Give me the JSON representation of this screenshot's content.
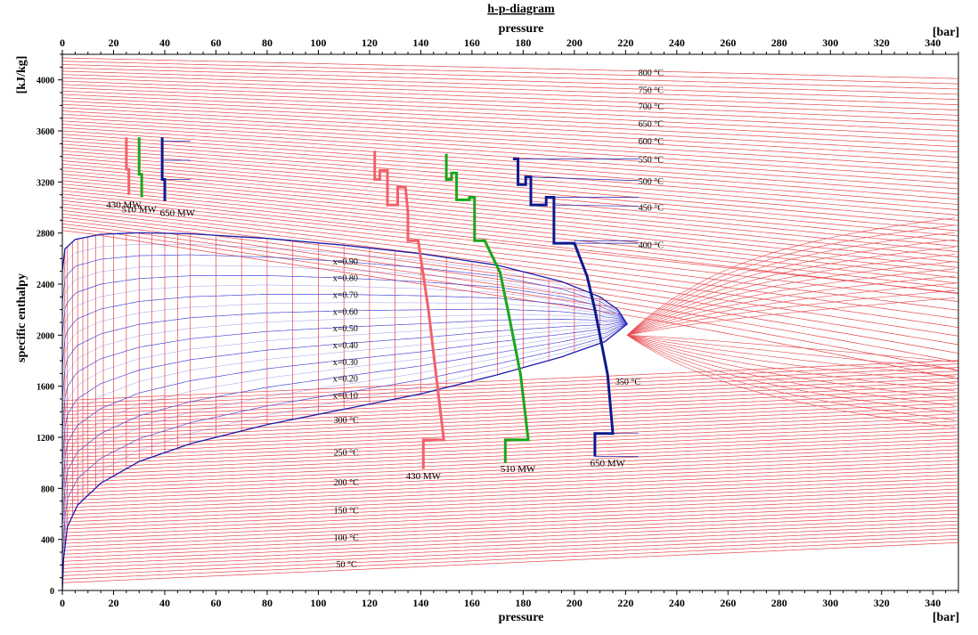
{
  "chart_data": {
    "type": "line",
    "title": "h-p-diagram",
    "xlabel": "pressure",
    "xunit": "[bar]",
    "ylabel": "specific enthalpy",
    "yunit": "[kJ/kg]",
    "xlim": [
      0,
      350
    ],
    "ylim": [
      0,
      4200
    ],
    "xticks": [
      "0",
      "20",
      "40",
      "60",
      "80",
      "100",
      "120",
      "140",
      "160",
      "180",
      "200",
      "220",
      "240",
      "260",
      "280",
      "300",
      "320",
      "340"
    ],
    "yticks": [
      "0",
      "400",
      "800",
      "1200",
      "1600",
      "2000",
      "2400",
      "2800",
      "3200",
      "3600",
      "4000"
    ],
    "critical_point": {
      "p": 220.6,
      "h": 2087
    },
    "saturation_dome": {
      "liquid": [
        [
          0.01,
          0
        ],
        [
          0.5,
          250
        ],
        [
          2,
          500
        ],
        [
          6,
          670
        ],
        [
          15,
          840
        ],
        [
          30,
          1010
        ],
        [
          50,
          1150
        ],
        [
          80,
          1300
        ],
        [
          110,
          1420
        ],
        [
          140,
          1540
        ],
        [
          170,
          1690
        ],
        [
          195,
          1830
        ],
        [
          212,
          1950
        ],
        [
          220.6,
          2087
        ]
      ],
      "vapor": [
        [
          0.01,
          2500
        ],
        [
          1,
          2675
        ],
        [
          5,
          2750
        ],
        [
          15,
          2790
        ],
        [
          30,
          2802
        ],
        [
          50,
          2794
        ],
        [
          80,
          2758
        ],
        [
          110,
          2705
        ],
        [
          140,
          2638
        ],
        [
          170,
          2548
        ],
        [
          195,
          2420
        ],
        [
          210,
          2300
        ],
        [
          217,
          2200
        ],
        [
          220.6,
          2087
        ]
      ]
    },
    "quality_lines": [
      "x=0.90",
      "x=0.80",
      "x=0.70",
      "x=0.60",
      "x=0.50",
      "x=0.40",
      "x=0.30",
      "x=0.20",
      "x=0.10"
    ],
    "quality_values": [
      0.9,
      0.8,
      0.7,
      0.6,
      0.5,
      0.4,
      0.3,
      0.2,
      0.1
    ],
    "isotherm_labels": [
      {
        "text": "800 °C",
        "p": 225,
        "h": 4060
      },
      {
        "text": "750 °C",
        "p": 225,
        "h": 3925
      },
      {
        "text": "700 °C",
        "p": 225,
        "h": 3795
      },
      {
        "text": "650 °C",
        "p": 225,
        "h": 3660
      },
      {
        "text": "600 °C",
        "p": 225,
        "h": 3525
      },
      {
        "text": "550 °C",
        "p": 225,
        "h": 3380
      },
      {
        "text": "500 °C",
        "p": 225,
        "h": 3210
      },
      {
        "text": "450 °C",
        "p": 225,
        "h": 3005
      },
      {
        "text": "400 °C",
        "p": 225,
        "h": 2710
      },
      {
        "text": "350 °C",
        "p": 216,
        "h": 1640
      },
      {
        "text": "300 °C",
        "p": 106,
        "h": 1340
      },
      {
        "text": "250 °C",
        "p": 106,
        "h": 1085
      },
      {
        "text": "200 °C",
        "p": 106,
        "h": 852
      },
      {
        "text": "150 °C",
        "p": 106,
        "h": 632
      },
      {
        "text": "100 °C",
        "p": 106,
        "h": 420
      },
      {
        "text": "50 °C",
        "p": 107,
        "h": 210
      }
    ],
    "series": [
      {
        "name": "430 MW",
        "color": "#f0626a",
        "path": [
          [
            141,
            950
          ],
          [
            141,
            1180
          ],
          [
            149,
            1180
          ],
          [
            146,
            1690
          ],
          [
            143,
            2200
          ],
          [
            141,
            2470
          ],
          [
            139,
            2740
          ],
          [
            135,
            2740
          ],
          [
            135,
            2960
          ],
          [
            134,
            3160
          ],
          [
            131,
            3160
          ],
          [
            131,
            3020
          ],
          [
            127,
            3020
          ],
          [
            127,
            3290
          ],
          [
            124,
            3290
          ],
          [
            124,
            3220
          ],
          [
            122,
            3220
          ],
          [
            122,
            3445
          ]
        ]
      },
      {
        "name": "510 MW",
        "color": "#1aa61a",
        "path": [
          [
            173,
            1000
          ],
          [
            173,
            1180
          ],
          [
            182,
            1180
          ],
          [
            179,
            1690
          ],
          [
            174,
            2200
          ],
          [
            171,
            2490
          ],
          [
            165,
            2740
          ],
          [
            161,
            2740
          ],
          [
            161,
            3080
          ],
          [
            159,
            3080
          ],
          [
            159,
            3060
          ],
          [
            154,
            3060
          ],
          [
            154,
            3270
          ],
          [
            152,
            3270
          ],
          [
            152,
            3220
          ],
          [
            150,
            3220
          ],
          [
            150,
            3420
          ]
        ]
      },
      {
        "name": "650 MW",
        "color": "#0a1a8c",
        "path": [
          [
            208,
            1050
          ],
          [
            208,
            1230
          ],
          [
            215,
            1230
          ],
          [
            213,
            1690
          ],
          [
            208,
            2200
          ],
          [
            205,
            2460
          ],
          [
            200,
            2720
          ],
          [
            192,
            2720
          ],
          [
            192,
            3080
          ],
          [
            189,
            3080
          ],
          [
            189,
            3020
          ],
          [
            183,
            3020
          ],
          [
            183,
            3240
          ],
          [
            181,
            3240
          ],
          [
            181,
            3180
          ],
          [
            178,
            3180
          ],
          [
            178,
            3380
          ],
          [
            176,
            3380
          ]
        ]
      },
      {
        "name": "430 MW (small)",
        "color": "#f0626a",
        "path": [
          [
            26,
            3100
          ],
          [
            26,
            3300
          ],
          [
            25,
            3300
          ],
          [
            25,
            3420
          ],
          [
            25,
            3550
          ]
        ]
      },
      {
        "name": "510 MW (small)",
        "color": "#1aa61a",
        "path": [
          [
            31,
            3080
          ],
          [
            31,
            3260
          ],
          [
            30,
            3260
          ],
          [
            30,
            3400
          ],
          [
            30,
            3550
          ]
        ]
      },
      {
        "name": "650 MW (small)",
        "color": "#0a1a8c",
        "path": [
          [
            40,
            3050
          ],
          [
            40,
            3220
          ],
          [
            39,
            3220
          ],
          [
            39,
            3370
          ],
          [
            39,
            3550
          ]
        ]
      }
    ],
    "series_labels": [
      {
        "text": "430 MW",
        "p": 141,
        "h": 900
      },
      {
        "text": "510 MW",
        "p": 178,
        "h": 955
      },
      {
        "text": "650 MW",
        "p": 213,
        "h": 1000
      },
      {
        "text": "430 MW",
        "p": 24,
        "h": 3025
      },
      {
        "text": "510 MW",
        "p": 30,
        "h": 2990
      },
      {
        "text": "650 MW",
        "p": 45,
        "h": 2960
      }
    ],
    "colors": {
      "isotherm": "#e8484c",
      "isobar": "#e8484c",
      "quality": "#4b4bd6",
      "dome": "#1a1aaa",
      "axis": "#000000"
    }
  }
}
